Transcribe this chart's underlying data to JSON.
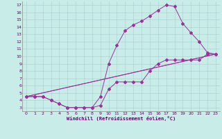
{
  "xlabel": "Windchill (Refroidissement éolien,°C)",
  "bg_color": "#c8ece8",
  "grid_color": "#aacccc",
  "line_color": "#993399",
  "xlim": [
    -0.5,
    23.5
  ],
  "ylim": [
    2.5,
    17.5
  ],
  "xticks": [
    0,
    1,
    2,
    3,
    4,
    5,
    6,
    7,
    8,
    9,
    10,
    11,
    12,
    13,
    14,
    15,
    16,
    17,
    18,
    19,
    20,
    21,
    22,
    23
  ],
  "yticks": [
    3,
    4,
    5,
    6,
    7,
    8,
    9,
    10,
    11,
    12,
    13,
    14,
    15,
    16,
    17
  ],
  "line1_x": [
    0,
    1,
    2,
    3,
    4,
    5,
    6,
    7,
    8,
    9,
    10,
    11,
    12,
    13,
    14,
    15,
    16,
    17,
    18,
    19,
    20,
    21,
    22,
    23
  ],
  "line1_y": [
    4.5,
    4.5,
    4.5,
    4.0,
    3.5,
    3.0,
    3.0,
    3.0,
    3.0,
    4.5,
    9.0,
    11.5,
    13.5,
    14.3,
    14.8,
    15.5,
    16.3,
    17.0,
    16.8,
    14.5,
    13.2,
    12.0,
    10.5,
    10.3
  ],
  "line2_x": [
    0,
    1,
    2,
    3,
    4,
    5,
    6,
    7,
    8,
    9,
    10,
    11,
    12,
    13,
    14,
    15,
    16,
    17,
    18,
    19,
    20,
    21,
    22,
    23
  ],
  "line2_y": [
    4.5,
    4.5,
    4.5,
    4.0,
    3.5,
    3.0,
    3.0,
    3.0,
    3.0,
    3.3,
    5.5,
    6.5,
    6.5,
    6.5,
    6.5,
    8.0,
    9.0,
    9.5,
    9.5,
    9.5,
    9.5,
    9.5,
    10.3,
    10.3
  ],
  "line3_x": [
    0,
    23
  ],
  "line3_y": [
    4.5,
    10.3
  ],
  "line4_x": [
    0,
    23
  ],
  "line4_y": [
    4.5,
    10.3
  ]
}
